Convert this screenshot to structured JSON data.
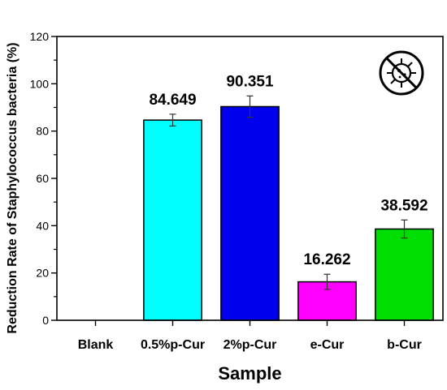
{
  "chart_data": {
    "type": "bar",
    "xlabel": "Sample",
    "ylabel": "Reduction Rate of Staphylococcus bacteria (%)",
    "ylim": [
      0,
      120
    ],
    "yticks": [
      0,
      20,
      40,
      60,
      80,
      100,
      120
    ],
    "grid": false,
    "categories": [
      "Blank",
      "0.5%p-Cur",
      "2%p-Cur",
      "e-Cur",
      "b-Cur"
    ],
    "values": [
      0,
      84.649,
      90.351,
      16.262,
      38.592
    ],
    "error": [
      0,
      2.5,
      4.5,
      3.2,
      3.8
    ],
    "value_labels": [
      "",
      "84.649",
      "90.351",
      "16.262",
      "38.592"
    ],
    "colors": [
      "#ffffff",
      "#00ffff",
      "#0000ee",
      "#ff00ff",
      "#00dd00"
    ],
    "icon": "no-bacteria-icon"
  }
}
